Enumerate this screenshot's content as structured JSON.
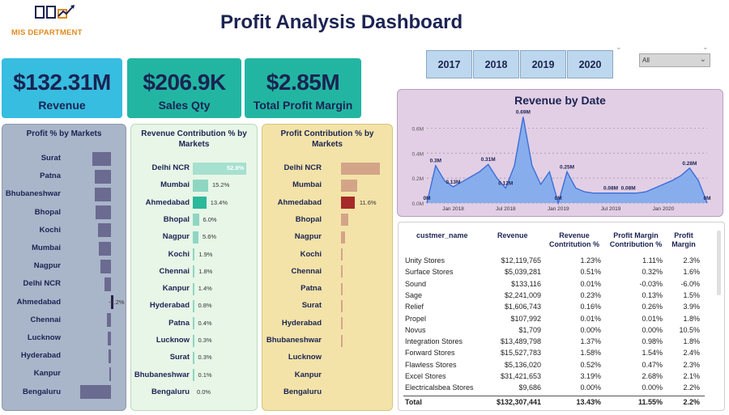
{
  "header": {
    "logo_text": "MIS DEPARTMENT",
    "title": "Profit Analysis Dashboard"
  },
  "years": [
    "2017",
    "2018",
    "2019",
    "2020"
  ],
  "dropdown": {
    "value": "All"
  },
  "kpis": {
    "revenue": {
      "value": "$132.31M",
      "label": "Revenue"
    },
    "sales_qty": {
      "value": "$206.9K",
      "label": "Sales Qty"
    },
    "profit_margin": {
      "value": "$2.85M",
      "label": "Total Profit Margin"
    }
  },
  "profit_by_markets": {
    "title": "Profit % by Markets",
    "markets": [
      "Surat",
      "Patna",
      "Bhubaneshwar",
      "Bhopal",
      "Kochi",
      "Mumbai",
      "Nagpur",
      "Delhi NCR",
      "Ahmedabad",
      "Chennai",
      "Lucknow",
      "Hyderabad",
      "Kanpur",
      "Bengaluru"
    ],
    "label_shown": "-2.2%",
    "label_index": 8,
    "color": "#6b6a90"
  },
  "revenue_contribution": {
    "title": "Revenue Contribution % by Markets",
    "markets": [
      "Delhi NCR",
      "Mumbai",
      "Ahmedabad",
      "Bhopal",
      "Nagpur",
      "Kochi",
      "Chennai",
      "Kanpur",
      "Hyderabad",
      "Patna",
      "Lucknow",
      "Surat",
      "Bhubaneshwar",
      "Bengaluru"
    ],
    "labels": [
      "52.8%",
      "15.2%",
      "13.4%",
      "6.0%",
      "5.6%",
      "1.9%",
      "1.8%",
      "1.4%",
      "0.8%",
      "0.4%",
      "0.3%",
      "0.3%",
      "0.1%",
      "0.0%"
    ],
    "color_top": "#a6e0cf",
    "color_mid": "#2cb89a",
    "color_low": "#8fd6c2"
  },
  "profit_contribution": {
    "title": "Profit Contribution % by Markets",
    "markets": [
      "Delhi NCR",
      "Mumbai",
      "Ahmedabad",
      "Bhopal",
      "Nagpur",
      "Kochi",
      "Chennai",
      "Patna",
      "Surat",
      "Hyderabad",
      "Bhubaneshwar",
      "Lucknow",
      "Kanpur",
      "Bengaluru"
    ],
    "label_shown": "11.6%",
    "label_index": 2,
    "color": "#d4a488",
    "highlight": "#a52a2a"
  },
  "chart_data": [
    {
      "type": "bar",
      "title": "Profit % by Markets",
      "categories": [
        "Surat",
        "Patna",
        "Bhubaneshwar",
        "Bhopal",
        "Kochi",
        "Mumbai",
        "Nagpur",
        "Delhi NCR",
        "Ahmedabad",
        "Chennai",
        "Lucknow",
        "Hyderabad",
        "Kanpur",
        "Bengaluru"
      ],
      "values": [
        4.5,
        4.0,
        3.9,
        3.7,
        3.2,
        3.0,
        2.6,
        1.6,
        -2.2,
        1.0,
        0.8,
        0.5,
        0.4,
        7.5
      ]
    },
    {
      "type": "bar",
      "title": "Revenue Contribution % by Markets",
      "categories": [
        "Delhi NCR",
        "Mumbai",
        "Ahmedabad",
        "Bhopal",
        "Nagpur",
        "Kochi",
        "Chennai",
        "Kanpur",
        "Hyderabad",
        "Patna",
        "Lucknow",
        "Surat",
        "Bhubaneshwar",
        "Bengaluru"
      ],
      "values": [
        52.8,
        15.2,
        13.4,
        6.0,
        5.6,
        1.9,
        1.8,
        1.4,
        0.8,
        0.4,
        0.3,
        0.3,
        0.1,
        0.0
      ]
    },
    {
      "type": "bar",
      "title": "Profit Contribution % by Markets",
      "categories": [
        "Delhi NCR",
        "Mumbai",
        "Ahmedabad",
        "Bhopal",
        "Nagpur",
        "Kochi",
        "Chennai",
        "Patna",
        "Surat",
        "Hyderabad",
        "Bhubaneshwar",
        "Lucknow",
        "Kanpur",
        "Bengaluru"
      ],
      "values": [
        33.0,
        13.5,
        11.6,
        6.5,
        3.5,
        1.2,
        0.5,
        0.3,
        0.2,
        0.1,
        0.1,
        0.0,
        0.0,
        0.0
      ]
    },
    {
      "type": "area",
      "title": "Revenue by Date",
      "x": [
        "2017-10",
        "2017-11",
        "2017-12",
        "2018-01",
        "2018-02",
        "2018-03",
        "2018-04",
        "2018-05",
        "2018-06",
        "2018-07",
        "2018-08",
        "2018-09",
        "2018-10",
        "2018-11",
        "2018-12",
        "2019-01",
        "2019-02",
        "2019-03",
        "2019-04",
        "2019-05",
        "2019-06",
        "2019-07",
        "2019-08",
        "2019-09",
        "2019-10",
        "2019-11",
        "2019-12",
        "2020-01",
        "2020-02",
        "2020-03",
        "2020-04",
        "2020-05",
        "2020-06"
      ],
      "values": [
        0.0,
        0.3,
        0.18,
        0.13,
        0.17,
        0.21,
        0.25,
        0.31,
        0.2,
        0.12,
        0.3,
        0.69,
        0.3,
        0.15,
        0.25,
        0.0,
        0.25,
        0.12,
        0.09,
        0.08,
        0.08,
        0.08,
        0.08,
        0.08,
        0.08,
        0.09,
        0.12,
        0.15,
        0.18,
        0.22,
        0.28,
        0.18,
        0.0
      ],
      "value_labels": [
        {
          "i": 0,
          "text": "0M"
        },
        {
          "i": 1,
          "text": "0.3M"
        },
        {
          "i": 3,
          "text": "0.13M"
        },
        {
          "i": 7,
          "text": "0.31M"
        },
        {
          "i": 9,
          "text": "0.12M"
        },
        {
          "i": 11,
          "text": "0.69M"
        },
        {
          "i": 15,
          "text": "0M"
        },
        {
          "i": 16,
          "text": "0.25M"
        },
        {
          "i": 21,
          "text": "0.08M"
        },
        {
          "i": 23,
          "text": "0.08M"
        },
        {
          "i": 30,
          "text": "0.28M"
        },
        {
          "i": 32,
          "text": "0M"
        }
      ],
      "yticks": [
        "0.0M",
        "0.2M",
        "0.4M",
        "0.6M"
      ],
      "xticks": [
        {
          "i": 3,
          "text": "Jan 2018"
        },
        {
          "i": 9,
          "text": "Jul 2018"
        },
        {
          "i": 15,
          "text": "Jan 2019"
        },
        {
          "i": 21,
          "text": "Jul 2019"
        },
        {
          "i": 27,
          "text": "Jan 2020"
        }
      ],
      "ylim": [
        0,
        0.7
      ]
    }
  ],
  "table": {
    "headers": {
      "name": "custmer_name",
      "revenue": "Revenue",
      "rev_contrib_1": "Revenue",
      "rev_contrib_2": "Contritution %",
      "pm_contrib_1": "Profit Margin",
      "pm_contrib_2": "Contribution %",
      "pm_1": "Profit",
      "pm_2": "Margin"
    },
    "rows": [
      [
        "Unity Stores",
        "$12,119,765",
        "1.23%",
        "1.11%",
        "2.3%"
      ],
      [
        "Surface Stores",
        "$5,039,281",
        "0.51%",
        "0.32%",
        "1.6%"
      ],
      [
        "Sound",
        "$133,116",
        "0.01%",
        "-0.03%",
        "-6.0%"
      ],
      [
        "Sage",
        "$2,241,009",
        "0.23%",
        "0.13%",
        "1.5%"
      ],
      [
        "Relief",
        "$1,606,743",
        "0.16%",
        "0.26%",
        "3.9%"
      ],
      [
        "Propel",
        "$107,992",
        "0.01%",
        "0.01%",
        "1.8%"
      ],
      [
        "Novus",
        "$1,709",
        "0.00%",
        "0.00%",
        "10.5%"
      ],
      [
        "Integration Stores",
        "$13,489,798",
        "1.37%",
        "0.98%",
        "1.8%"
      ],
      [
        "Forward Stores",
        "$15,527,783",
        "1.58%",
        "1.54%",
        "2.4%"
      ],
      [
        "Flawless Stores",
        "$5,136,020",
        "0.52%",
        "0.47%",
        "2.3%"
      ],
      [
        "Excel Stores",
        "$31,421,653",
        "3.19%",
        "2.68%",
        "2.1%"
      ],
      [
        "Electricalsbea Stores",
        "$9,686",
        "0.00%",
        "0.00%",
        "2.2%"
      ]
    ],
    "total": [
      "Total",
      "$132,307,441",
      "13.43%",
      "11.55%",
      "2.2%"
    ]
  }
}
